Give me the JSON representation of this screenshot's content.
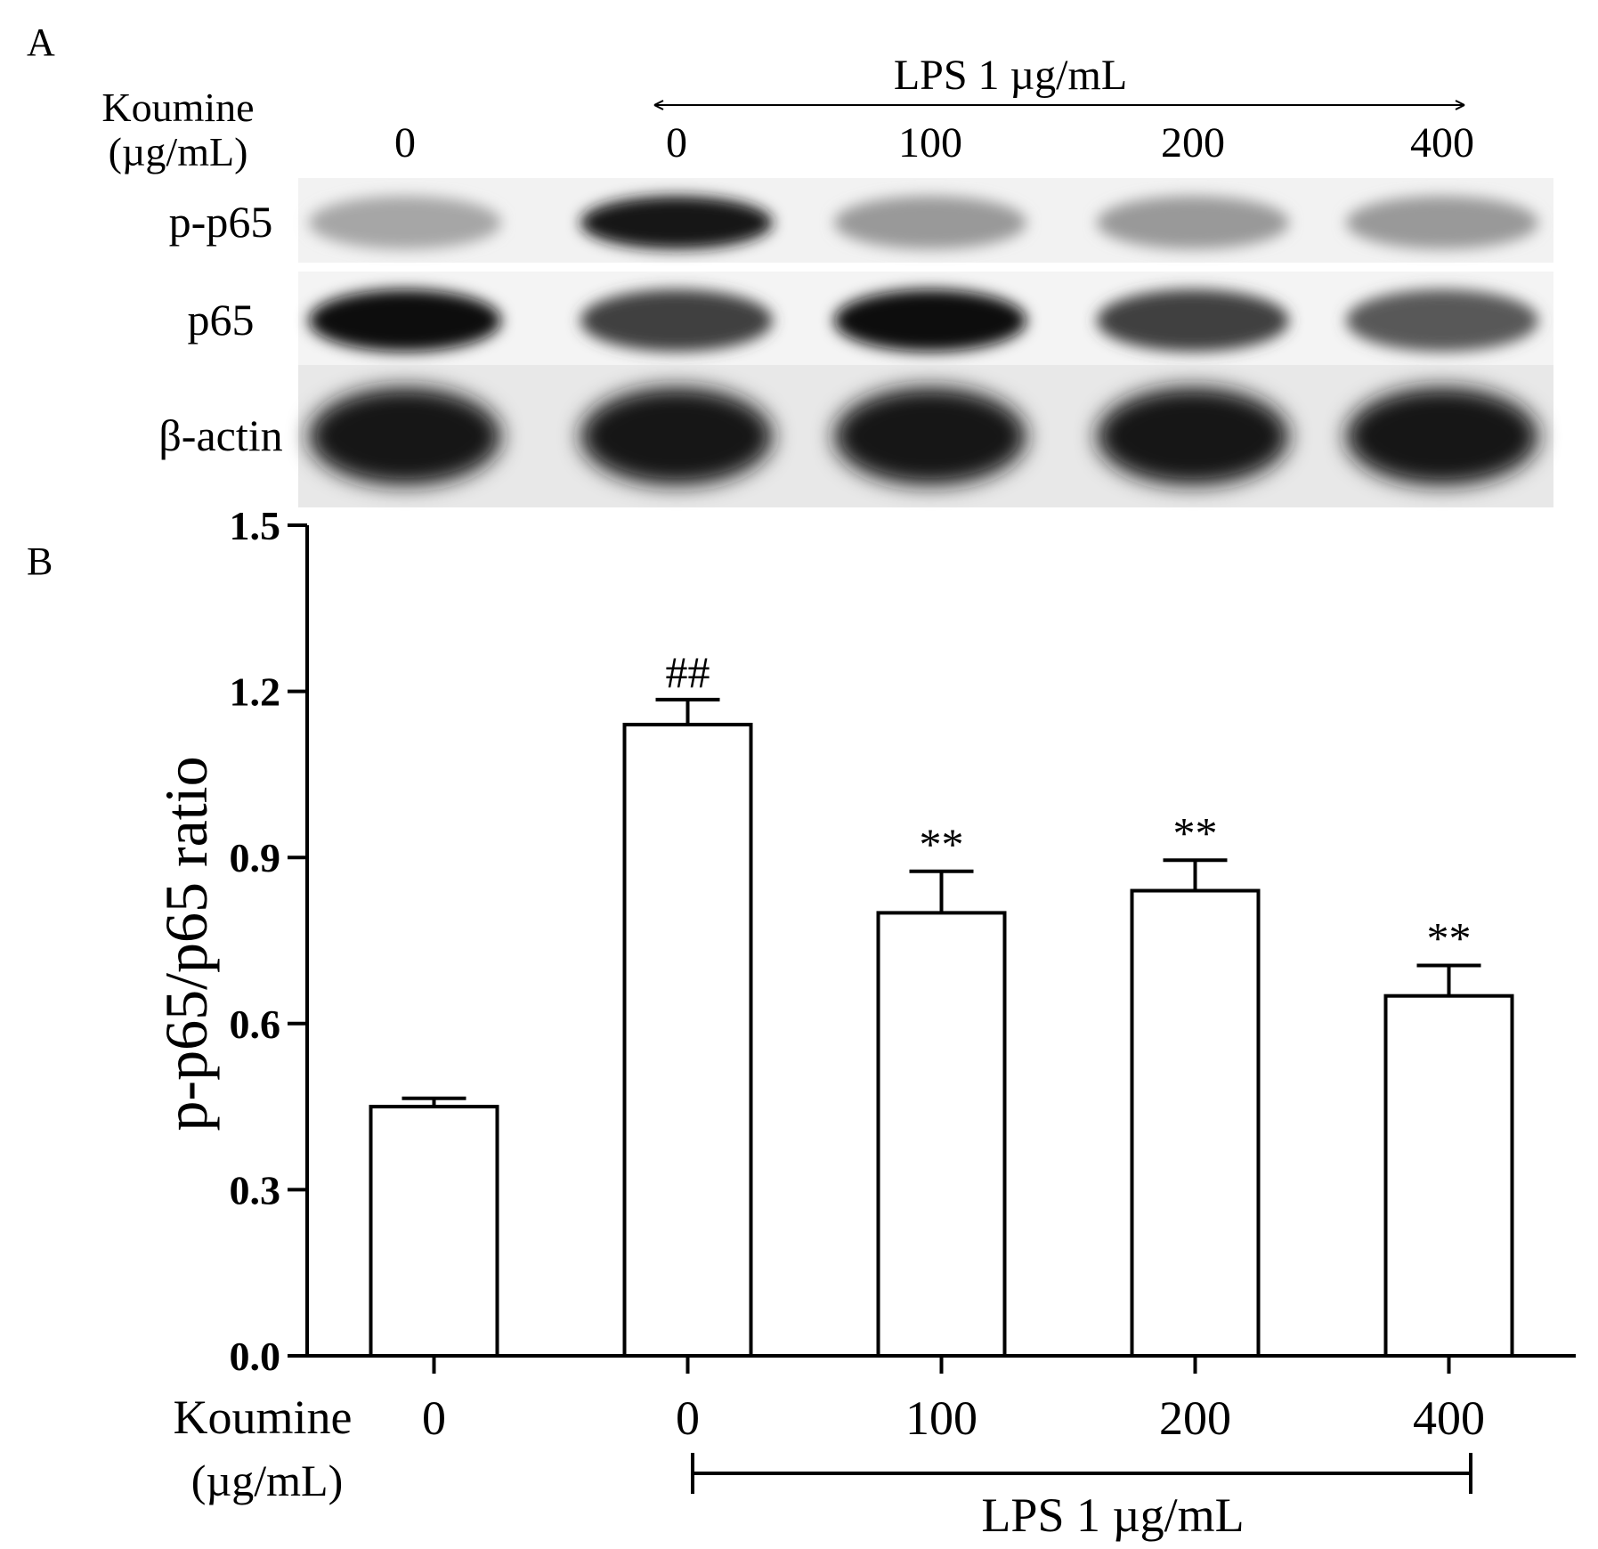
{
  "panelA": {
    "label": "A",
    "treatment_label_line1": "Koumine",
    "treatment_label_line2": "(µg/mL)",
    "lps_label": "LPS 1 µg/mL",
    "doses": [
      "0",
      "0",
      "100",
      "200",
      "400"
    ],
    "blot_rows": [
      {
        "label": "p-p65",
        "intensities": [
          0.35,
          0.9,
          0.4,
          0.4,
          0.4
        ]
      },
      {
        "label": "p65",
        "intensities": [
          0.95,
          0.75,
          0.95,
          0.75,
          0.65
        ]
      },
      {
        "label": "β-actin",
        "intensities": [
          0.9,
          0.9,
          0.9,
          0.9,
          0.92
        ]
      }
    ]
  },
  "panelB": {
    "label": "B",
    "treatment_label_line1": "Koumine",
    "treatment_label_line2": "(µg/mL)",
    "lps_label": "LPS 1 µg/mL"
  },
  "chart_data": {
    "type": "bar",
    "categories": [
      "0",
      "0",
      "100",
      "200",
      "400"
    ],
    "values": [
      0.45,
      1.14,
      0.8,
      0.84,
      0.65
    ],
    "errors": [
      0.015,
      0.045,
      0.075,
      0.055,
      0.055
    ],
    "annotations": [
      "",
      "##",
      "**",
      "**",
      "**"
    ],
    "ylabel": "p-p65/p65 ratio",
    "xlabel": "",
    "ylim": [
      0,
      1.5
    ],
    "yticks": [
      "0.0",
      "0.3",
      "0.6",
      "0.9",
      "1.2",
      "1.5"
    ],
    "ytick_values": [
      0,
      0.3,
      0.6,
      0.9,
      1.2,
      1.5
    ],
    "bar_fill": "#ffffff",
    "bar_stroke": "#000000"
  }
}
